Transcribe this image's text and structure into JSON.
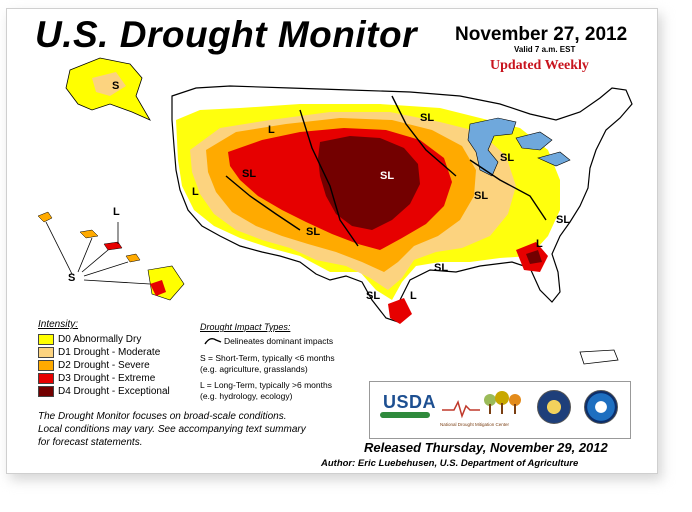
{
  "header": {
    "title": "U.S. Drought Monitor",
    "date": "November 27, 2012",
    "valid": "Valid 7 a.m. EST",
    "updated": "Updated Weekly"
  },
  "map_labels": {
    "short_term": "S",
    "long_term": "L",
    "short_long": "SL"
  },
  "legend": {
    "heading": "Intensity:",
    "items": [
      {
        "label": "D0 Abnormally Dry",
        "color": "#ffff00"
      },
      {
        "label": "D1 Drought - Moderate",
        "color": "#fcd37f"
      },
      {
        "label": "D2 Drought - Severe",
        "color": "#ffaa00"
      },
      {
        "label": "D3 Drought - Extreme",
        "color": "#e60000"
      },
      {
        "label": "D4 Drought - Exceptional",
        "color": "#730000"
      }
    ]
  },
  "impact": {
    "heading": "Drought Impact Types:",
    "delineates": "Delineates dominant impacts",
    "short_line1": "S = Short-Term, typically <6 months",
    "short_line2": "(e.g. agriculture, grasslands)",
    "long_line1": "L = Long-Term, typically >6 months",
    "long_line2": "(e.g. hydrology, ecology)"
  },
  "note": {
    "line1": "The Drought Monitor focuses on broad-scale conditions.",
    "line2": "Local conditions may vary. See accompanying text summary",
    "line3": "for forecast statements."
  },
  "logos": {
    "usda": "USDA",
    "ndmc": "National Drought Mitigation Center"
  },
  "footer": {
    "released": "Released Thursday, November 29, 2012",
    "author": "Author: Eric Luebehusen, U.S. Department of Agriculture"
  },
  "colors": {
    "water": "#6fa8dc",
    "land": "#ffffff",
    "border": "#000000"
  }
}
